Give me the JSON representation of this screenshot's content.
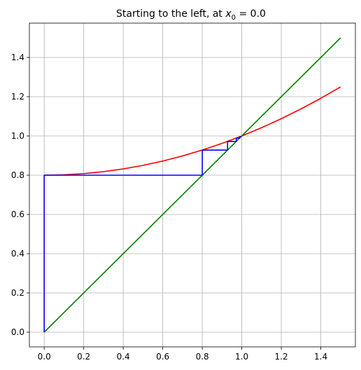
{
  "chart_data": {
    "type": "line",
    "title": {
      "prefix": "Starting to the left, at ",
      "var": "x",
      "sub": "0",
      "suffix": " = 0.0"
    },
    "xlabel": "",
    "ylabel": "",
    "xlim": [
      -0.075,
      1.575
    ],
    "ylim": [
      -0.075,
      1.575
    ],
    "xticks": [
      0.0,
      0.2,
      0.4,
      0.6,
      0.8,
      1.0,
      1.2,
      1.4
    ],
    "yticks": [
      0.0,
      0.2,
      0.4,
      0.6,
      0.8,
      1.0,
      1.2,
      1.4
    ],
    "xtick_labels": [
      "0.0",
      "0.2",
      "0.4",
      "0.6",
      "0.8",
      "1.0",
      "1.2",
      "1.4"
    ],
    "ytick_labels": [
      "0.0",
      "0.2",
      "0.4",
      "0.6",
      "0.8",
      "1.0",
      "1.2",
      "1.4"
    ],
    "grid": true,
    "series": [
      {
        "color": "#ff0000",
        "x": [
          0.0,
          0.1,
          0.2,
          0.3,
          0.4,
          0.5,
          0.6,
          0.7,
          0.8,
          0.9,
          1.0,
          1.1,
          1.2,
          1.3,
          1.4,
          1.5
        ],
        "y": [
          0.8,
          0.802,
          0.808,
          0.818,
          0.832,
          0.85,
          0.872,
          0.898,
          0.928,
          0.962,
          1.0,
          1.042,
          1.088,
          1.138,
          1.192,
          1.25
        ]
      },
      {
        "color": "#008000",
        "x": [
          0.0,
          1.5
        ],
        "y": [
          0.0,
          1.5
        ]
      },
      {
        "color": "#0000ff",
        "x": [
          0.0,
          0.0,
          0.8,
          0.8,
          0.928,
          0.928,
          0.972,
          0.972,
          0.989,
          0.989,
          0.996,
          0.996,
          0.998
        ],
        "y": [
          0.0,
          0.8,
          0.8,
          0.928,
          0.928,
          0.972,
          0.972,
          0.989,
          0.989,
          0.996,
          0.996,
          0.998,
          0.998
        ]
      }
    ]
  }
}
